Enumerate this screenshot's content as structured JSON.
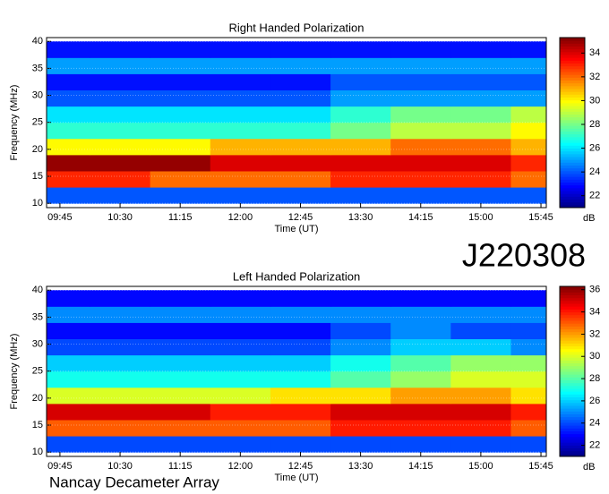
{
  "observation": "J220308",
  "instrument": "Nancay Decameter Array",
  "chart_data": [
    {
      "type": "heatmap",
      "title": "Right Handed Polarization",
      "x_label": "Time (UT)",
      "y_label": "Frequency (MHz)",
      "colormap": "jet",
      "colorbar_label": "dB",
      "x": [
        "09:45",
        "10:30",
        "11:15",
        "12:00",
        "12:45",
        "13:30",
        "14:15",
        "15:00",
        "15:45"
      ],
      "y": [
        11.5,
        14.5,
        17.5,
        20.5,
        23.5,
        26.5,
        29.5,
        32.5,
        35.5,
        38.5
      ],
      "z": [
        [
          24,
          24,
          24,
          24,
          24,
          24,
          24,
          24,
          24
        ],
        [
          33,
          33,
          32,
          32,
          32,
          33,
          33,
          33,
          32
        ],
        [
          35,
          35,
          35,
          34,
          34,
          34,
          34,
          34,
          33
        ],
        [
          30,
          30,
          30,
          31,
          31,
          31,
          32,
          32,
          31
        ],
        [
          27,
          27,
          27,
          27,
          27,
          28,
          29,
          29,
          30
        ],
        [
          26,
          26,
          26,
          26,
          26,
          27,
          28,
          28,
          29
        ],
        [
          24,
          24,
          24,
          24,
          24,
          25,
          25,
          25,
          25
        ],
        [
          23,
          23,
          23,
          23,
          23,
          24,
          24,
          24,
          24
        ],
        [
          25,
          25,
          25,
          25,
          25,
          25,
          25,
          25,
          25
        ],
        [
          23,
          23,
          23,
          23,
          23,
          23,
          23,
          23,
          23
        ]
      ],
      "xlim": [
        "09:35",
        "15:49"
      ],
      "xticks": [
        "09:45",
        "10:30",
        "11:15",
        "12:00",
        "12:45",
        "13:30",
        "14:15",
        "15:00",
        "15:45"
      ],
      "ylim": [
        9.2,
        40.7
      ],
      "yticks": [
        10,
        15,
        20,
        25,
        30,
        35,
        40
      ],
      "zlim": [
        21,
        35.3
      ],
      "zticks": [
        22,
        24,
        26,
        28,
        30,
        32,
        34
      ]
    },
    {
      "type": "heatmap",
      "title": "Left Handed Polarization",
      "x_label": "Time (UT)",
      "y_label": "Frequency (MHz)",
      "colormap": "jet",
      "colorbar_label": "dB",
      "x": [
        "09:45",
        "10:30",
        "11:15",
        "12:00",
        "12:45",
        "13:30",
        "14:15",
        "15:00",
        "15:45"
      ],
      "y": [
        11.5,
        14.5,
        17.5,
        20.5,
        23.5,
        26.5,
        29.5,
        32.5,
        35.5,
        38.5
      ],
      "z": [
        [
          24,
          24,
          24,
          24,
          24,
          24,
          24,
          24,
          24
        ],
        [
          33,
          33,
          33,
          33,
          33,
          34,
          34,
          34,
          33
        ],
        [
          35,
          35,
          35,
          34,
          34,
          35,
          35,
          35,
          34
        ],
        [
          30,
          30,
          30,
          30,
          31,
          31,
          32,
          32,
          31
        ],
        [
          27,
          27,
          27,
          27,
          27,
          28,
          29,
          30,
          30
        ],
        [
          26,
          26,
          26,
          26,
          26,
          27,
          28,
          29,
          29
        ],
        [
          24,
          24,
          24,
          24,
          24,
          25,
          26,
          26,
          25
        ],
        [
          23,
          23,
          23,
          23,
          23,
          24,
          25,
          24,
          24
        ],
        [
          25,
          25,
          25,
          25,
          25,
          25,
          25,
          25,
          25
        ],
        [
          23,
          23,
          23,
          23,
          23,
          23,
          23,
          23,
          23
        ]
      ],
      "xlim": [
        "09:35",
        "15:49"
      ],
      "xticks": [
        "09:45",
        "10:30",
        "11:15",
        "12:00",
        "12:45",
        "13:30",
        "14:15",
        "15:00",
        "15:45"
      ],
      "ylim": [
        9.2,
        40.7
      ],
      "yticks": [
        10,
        15,
        20,
        25,
        30,
        35,
        40
      ],
      "zlim": [
        21,
        36.3
      ],
      "zticks": [
        22,
        24,
        26,
        28,
        30,
        32,
        34,
        36
      ]
    }
  ]
}
